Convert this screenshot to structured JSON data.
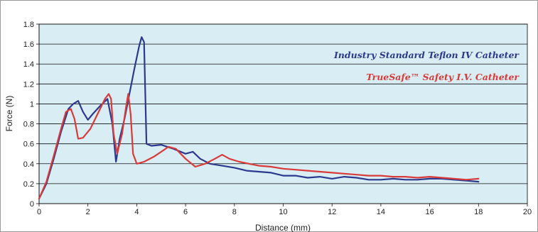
{
  "chart_data": {
    "type": "line",
    "xlabel": "Distance (mm)",
    "ylabel": "Force (N)",
    "xlim": [
      0,
      20
    ],
    "ylim": [
      0,
      1.8
    ],
    "x_ticks": [
      "0",
      "2",
      "4",
      "6",
      "8",
      "10",
      "12",
      "14",
      "16",
      "18",
      "20"
    ],
    "y_ticks": [
      "0",
      "0.2",
      "0.4",
      "0.6",
      "0.8",
      "1",
      "1.2",
      "1.4",
      "1.6",
      "1.8"
    ],
    "grid": "horizontal",
    "plot_background": "#d9eef4",
    "legend_position": "top-right",
    "series": [
      {
        "name": "Industry Standard Teflon IV Catheter",
        "color": "#2b3a8f",
        "x": [
          0,
          0.3,
          0.6,
          0.9,
          1.2,
          1.4,
          1.6,
          1.8,
          2.0,
          2.2,
          2.5,
          2.8,
          3.0,
          3.15,
          3.3,
          3.5,
          3.7,
          3.9,
          4.1,
          4.2,
          4.3,
          4.4,
          4.6,
          5.0,
          5.5,
          6.0,
          6.3,
          6.6,
          7.0,
          7.5,
          8.0,
          8.5,
          9.0,
          9.5,
          10.0,
          10.5,
          11.0,
          11.5,
          12.0,
          12.5,
          13.0,
          13.5,
          14.0,
          14.5,
          15.0,
          15.5,
          16.0,
          16.5,
          17.0,
          17.5,
          18.0
        ],
        "values": [
          0.05,
          0.2,
          0.45,
          0.72,
          0.95,
          1.0,
          1.03,
          0.92,
          0.84,
          0.9,
          0.98,
          1.05,
          0.8,
          0.42,
          0.65,
          0.85,
          1.1,
          1.35,
          1.58,
          1.67,
          1.62,
          0.6,
          0.58,
          0.59,
          0.55,
          0.5,
          0.52,
          0.45,
          0.4,
          0.38,
          0.36,
          0.33,
          0.32,
          0.31,
          0.28,
          0.28,
          0.26,
          0.27,
          0.25,
          0.27,
          0.26,
          0.24,
          0.24,
          0.25,
          0.24,
          0.24,
          0.25,
          0.25,
          0.24,
          0.23,
          0.22
        ]
      },
      {
        "name": "TrueSafe™ Safety I.V. Catheter",
        "color": "#d93a3a",
        "x": [
          0,
          0.3,
          0.6,
          0.9,
          1.1,
          1.3,
          1.45,
          1.6,
          1.8,
          2.1,
          2.4,
          2.7,
          2.85,
          2.95,
          3.05,
          3.2,
          3.4,
          3.55,
          3.65,
          3.75,
          3.85,
          4.0,
          4.3,
          4.7,
          5.0,
          5.3,
          5.6,
          6.0,
          6.4,
          6.8,
          7.2,
          7.5,
          7.8,
          8.2,
          8.6,
          9.0,
          9.5,
          10.0,
          10.5,
          11.0,
          11.5,
          12.0,
          12.5,
          13.0,
          13.5,
          14.0,
          14.5,
          15.0,
          15.5,
          16.0,
          16.5,
          17.0,
          17.5,
          18.0
        ],
        "values": [
          0.05,
          0.22,
          0.48,
          0.75,
          0.92,
          0.95,
          0.85,
          0.65,
          0.66,
          0.75,
          0.9,
          1.05,
          1.1,
          1.05,
          0.7,
          0.5,
          0.7,
          0.95,
          1.1,
          0.9,
          0.5,
          0.4,
          0.42,
          0.47,
          0.52,
          0.57,
          0.55,
          0.45,
          0.37,
          0.4,
          0.45,
          0.49,
          0.45,
          0.42,
          0.4,
          0.38,
          0.37,
          0.35,
          0.34,
          0.33,
          0.32,
          0.31,
          0.3,
          0.29,
          0.28,
          0.28,
          0.27,
          0.27,
          0.26,
          0.27,
          0.26,
          0.25,
          0.24,
          0.25
        ]
      }
    ]
  }
}
